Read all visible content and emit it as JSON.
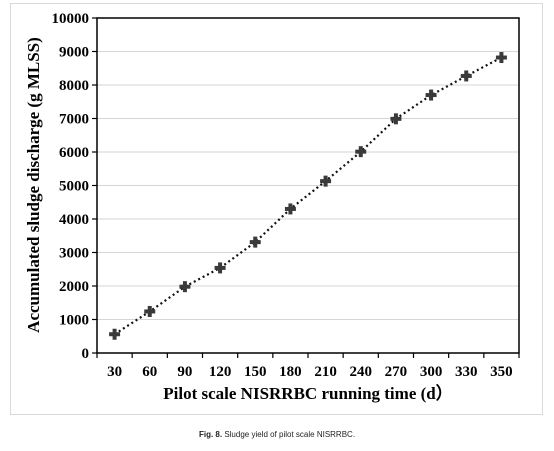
{
  "chart_data": {
    "type": "line",
    "xlabel": "Pilot scale NISRRBC running time (d）",
    "ylabel": "Accumulated sludge discharge (g MLSS)",
    "ylim": [
      0,
      10000
    ],
    "yticks": [
      0,
      1000,
      2000,
      3000,
      4000,
      5000,
      6000,
      7000,
      8000,
      9000,
      10000
    ],
    "categories": [
      "30",
      "60",
      "90",
      "120",
      "150",
      "180",
      "210",
      "240",
      "270",
      "300",
      "330",
      "350"
    ],
    "series": [
      {
        "values": [
          560,
          1240,
          1980,
          2540,
          3310,
          4300,
          5130,
          6010,
          6990,
          7700,
          8270,
          8820
        ]
      }
    ],
    "grid": true,
    "marker": "plus",
    "line_style": "dotted",
    "color": "#3a3a3a"
  },
  "caption": {
    "label": "Fig. 8.",
    "text": "Sludge yield of pilot scale NISRRBC."
  }
}
